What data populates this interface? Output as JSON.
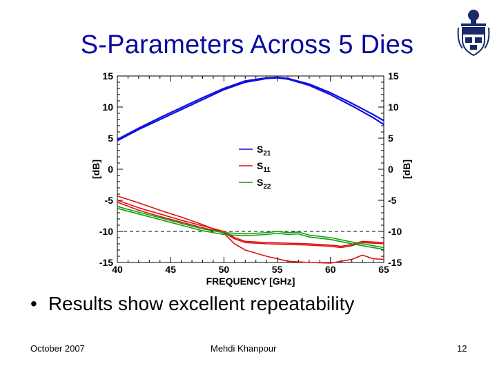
{
  "slide": {
    "title": "S-Parameters Across 5 Dies",
    "bullet": "Results show excellent repeatability",
    "footer_left": "October 2007",
    "footer_center": "Mehdi Khanpour",
    "footer_right": "12"
  },
  "colors": {
    "title": "#0a0aa0",
    "s21": "#1010e0",
    "s11": "#e01010",
    "s22": "#10a010"
  },
  "chart_data": {
    "type": "line",
    "xlabel": "FREQUENCY [GHz]",
    "ylabel": "[dB]",
    "ylabel_right": "[dB]",
    "xlim": [
      40,
      65
    ],
    "ylim": [
      -15,
      15
    ],
    "xticks": [
      40,
      45,
      50,
      55,
      60,
      65
    ],
    "yticks": [
      -15,
      -10,
      -5,
      0,
      5,
      10,
      15
    ],
    "reference_line": -10,
    "legend": {
      "position": "center"
    },
    "series": [
      {
        "name": "S21",
        "name_base": "S",
        "name_sub": "21",
        "group": "s21",
        "x": [
          40,
          42,
          44,
          46,
          48,
          50,
          52,
          54,
          55,
          56,
          58,
          60,
          62,
          64,
          65
        ],
        "y": [
          4.6,
          6.4,
          8.0,
          9.6,
          11.2,
          12.8,
          14.0,
          14.6,
          14.7,
          14.5,
          13.5,
          12.0,
          10.2,
          8.3,
          7.2
        ]
      },
      {
        "name": "",
        "group": "s21",
        "x": [
          40,
          42,
          44,
          46,
          48,
          50,
          52,
          54,
          55,
          56,
          58,
          60,
          62,
          64,
          65
        ],
        "y": [
          4.8,
          6.6,
          8.3,
          9.9,
          11.5,
          13.0,
          14.2,
          14.7,
          14.8,
          14.6,
          13.7,
          12.3,
          10.6,
          8.8,
          7.8
        ]
      },
      {
        "name": "S11",
        "name_base": "S",
        "name_sub": "11",
        "group": "s11",
        "x": [
          40,
          42,
          44,
          46,
          48,
          50,
          51,
          52,
          54,
          56,
          58,
          60,
          61,
          62,
          63,
          64,
          65
        ],
        "y": [
          -5.3,
          -6.6,
          -7.6,
          -8.5,
          -9.4,
          -10.2,
          -11.2,
          -11.8,
          -12.0,
          -12.1,
          -12.2,
          -12.4,
          -12.6,
          -12.3,
          -11.8,
          -11.9,
          -12.0
        ]
      },
      {
        "name": "",
        "group": "s11",
        "x": [
          40,
          42,
          44,
          46,
          48,
          50,
          51,
          52,
          54,
          56,
          58,
          60,
          61,
          62,
          63,
          64,
          65
        ],
        "y": [
          -5.0,
          -6.2,
          -7.2,
          -8.2,
          -9.1,
          -10.0,
          -11.0,
          -11.6,
          -11.8,
          -11.9,
          -12.0,
          -12.2,
          -12.4,
          -12.1,
          -11.6,
          -11.7,
          -11.8
        ]
      },
      {
        "name": "",
        "group": "s11",
        "x": [
          40,
          42,
          44,
          46,
          48,
          50,
          51,
          52,
          54,
          56,
          58,
          60,
          62,
          63,
          64,
          65
        ],
        "y": [
          -4.3,
          -5.4,
          -6.6,
          -7.7,
          -8.9,
          -10.3,
          -12.0,
          -13.0,
          -14.0,
          -14.8,
          -15.0,
          -15.1,
          -14.5,
          -13.8,
          -14.4,
          -14.5
        ]
      },
      {
        "name": "S22",
        "name_base": "S",
        "name_sub": "22",
        "group": "s22",
        "x": [
          40,
          42,
          44,
          46,
          48,
          50,
          52,
          54,
          55,
          56,
          57,
          58,
          60,
          62,
          64,
          65
        ],
        "y": [
          -6.3,
          -7.2,
          -8.1,
          -9.0,
          -9.9,
          -10.5,
          -10.7,
          -10.5,
          -10.3,
          -10.5,
          -10.4,
          -10.9,
          -11.3,
          -12.0,
          -12.6,
          -12.9
        ]
      },
      {
        "name": "",
        "group": "s22",
        "x": [
          40,
          42,
          44,
          46,
          48,
          50,
          52,
          54,
          55,
          56,
          57,
          58,
          60,
          62,
          64,
          65
        ],
        "y": [
          -6.0,
          -6.9,
          -7.8,
          -8.7,
          -9.6,
          -10.2,
          -10.4,
          -10.2,
          -10.0,
          -10.2,
          -10.1,
          -10.6,
          -11.0,
          -11.7,
          -12.3,
          -12.6
        ]
      }
    ]
  }
}
